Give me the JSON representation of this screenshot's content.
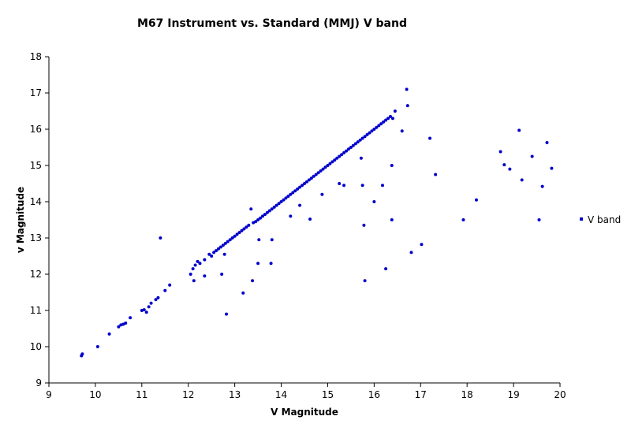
{
  "chart_data": {
    "type": "scatter",
    "title": "M67 Instrument vs. Standard (MMJ)  V band",
    "xlabel": "V Magnitude",
    "ylabel": "v Magnitude",
    "xlim": [
      9,
      20
    ],
    "ylim": [
      9,
      18
    ],
    "xticks": [
      "9",
      "10",
      "11",
      "12",
      "13",
      "14",
      "15",
      "16",
      "17",
      "18",
      "19",
      "20"
    ],
    "yticks": [
      "9",
      "10",
      "11",
      "12",
      "13",
      "14",
      "15",
      "16",
      "17",
      "18"
    ],
    "grid": false,
    "legend": "right",
    "marker_color": "#0000cc",
    "series": [
      {
        "name": "V band",
        "points": [
          [
            9.7,
            9.75
          ],
          [
            9.72,
            9.8
          ],
          [
            10.05,
            10.0
          ],
          [
            10.3,
            10.35
          ],
          [
            10.5,
            10.55
          ],
          [
            10.55,
            10.6
          ],
          [
            10.6,
            10.62
          ],
          [
            10.65,
            10.65
          ],
          [
            10.75,
            10.8
          ],
          [
            11.0,
            11.0
          ],
          [
            11.05,
            11.02
          ],
          [
            11.1,
            10.95
          ],
          [
            11.15,
            11.1
          ],
          [
            11.2,
            11.2
          ],
          [
            11.3,
            11.3
          ],
          [
            11.35,
            11.35
          ],
          [
            11.4,
            13.0
          ],
          [
            11.5,
            11.55
          ],
          [
            11.6,
            11.7
          ],
          [
            12.05,
            12.0
          ],
          [
            12.1,
            12.15
          ],
          [
            12.12,
            11.82
          ],
          [
            12.15,
            12.25
          ],
          [
            12.2,
            12.35
          ],
          [
            12.25,
            12.3
          ],
          [
            12.35,
            11.95
          ],
          [
            12.35,
            12.4
          ],
          [
            12.45,
            12.55
          ],
          [
            12.5,
            12.5
          ],
          [
            12.55,
            12.6
          ],
          [
            12.6,
            12.65
          ],
          [
            12.65,
            12.7
          ],
          [
            12.7,
            12.75
          ],
          [
            12.72,
            12.0
          ],
          [
            12.75,
            12.8
          ],
          [
            12.78,
            12.55
          ],
          [
            12.8,
            12.85
          ],
          [
            12.82,
            10.9
          ],
          [
            12.85,
            12.9
          ],
          [
            12.9,
            12.95
          ],
          [
            12.95,
            13.0
          ],
          [
            13.0,
            13.05
          ],
          [
            13.05,
            13.1
          ],
          [
            13.1,
            13.15
          ],
          [
            13.15,
            13.2
          ],
          [
            13.18,
            11.48
          ],
          [
            13.2,
            13.25
          ],
          [
            13.25,
            13.3
          ],
          [
            13.3,
            13.35
          ],
          [
            13.35,
            13.8
          ],
          [
            13.38,
            11.82
          ],
          [
            13.4,
            13.42
          ],
          [
            13.45,
            13.45
          ],
          [
            13.5,
            13.5
          ],
          [
            13.5,
            12.3
          ],
          [
            13.52,
            12.95
          ],
          [
            13.55,
            13.55
          ],
          [
            13.6,
            13.6
          ],
          [
            13.65,
            13.65
          ],
          [
            13.7,
            13.7
          ],
          [
            13.75,
            13.75
          ],
          [
            13.78,
            12.3
          ],
          [
            13.8,
            13.8
          ],
          [
            13.8,
            12.95
          ],
          [
            13.85,
            13.85
          ],
          [
            13.9,
            13.9
          ],
          [
            13.95,
            13.95
          ],
          [
            14.0,
            14.0
          ],
          [
            14.05,
            14.05
          ],
          [
            14.1,
            14.1
          ],
          [
            14.15,
            14.15
          ],
          [
            14.2,
            13.6
          ],
          [
            14.2,
            14.2
          ],
          [
            14.25,
            14.25
          ],
          [
            14.3,
            14.3
          ],
          [
            14.35,
            14.35
          ],
          [
            14.4,
            13.9
          ],
          [
            14.4,
            14.4
          ],
          [
            14.45,
            14.45
          ],
          [
            14.5,
            14.5
          ],
          [
            14.55,
            14.55
          ],
          [
            14.6,
            14.6
          ],
          [
            14.62,
            13.52
          ],
          [
            14.65,
            14.65
          ],
          [
            14.7,
            14.7
          ],
          [
            14.75,
            14.75
          ],
          [
            14.8,
            14.8
          ],
          [
            14.85,
            14.85
          ],
          [
            14.88,
            14.2
          ],
          [
            14.9,
            14.9
          ],
          [
            14.95,
            14.95
          ],
          [
            15.0,
            15.0
          ],
          [
            15.05,
            15.05
          ],
          [
            15.1,
            15.1
          ],
          [
            15.15,
            15.15
          ],
          [
            15.2,
            15.2
          ],
          [
            15.25,
            15.25
          ],
          [
            15.25,
            14.5
          ],
          [
            15.3,
            15.3
          ],
          [
            15.35,
            15.35
          ],
          [
            15.35,
            14.45
          ],
          [
            15.4,
            15.4
          ],
          [
            15.45,
            15.45
          ],
          [
            15.5,
            15.5
          ],
          [
            15.55,
            15.55
          ],
          [
            15.6,
            15.6
          ],
          [
            15.65,
            15.65
          ],
          [
            15.7,
            15.7
          ],
          [
            15.72,
            15.2
          ],
          [
            15.75,
            15.75
          ],
          [
            15.75,
            14.45
          ],
          [
            15.78,
            13.35
          ],
          [
            15.8,
            11.82
          ],
          [
            15.8,
            15.8
          ],
          [
            15.85,
            15.85
          ],
          [
            15.9,
            15.9
          ],
          [
            15.95,
            15.95
          ],
          [
            16.0,
            16.0
          ],
          [
            16.0,
            14.0
          ],
          [
            16.05,
            16.05
          ],
          [
            16.1,
            16.1
          ],
          [
            16.15,
            16.15
          ],
          [
            16.18,
            14.45
          ],
          [
            16.2,
            16.2
          ],
          [
            16.25,
            16.25
          ],
          [
            16.25,
            12.15
          ],
          [
            16.3,
            16.3
          ],
          [
            16.35,
            16.35
          ],
          [
            16.38,
            15.0
          ],
          [
            16.38,
            13.5
          ],
          [
            16.4,
            16.3
          ],
          [
            16.45,
            16.5
          ],
          [
            16.6,
            15.95
          ],
          [
            16.7,
            17.1
          ],
          [
            16.72,
            16.65
          ],
          [
            16.8,
            12.6
          ],
          [
            17.02,
            12.82
          ],
          [
            17.2,
            15.75
          ],
          [
            17.32,
            14.75
          ],
          [
            17.92,
            13.5
          ],
          [
            18.2,
            14.05
          ],
          [
            18.72,
            15.38
          ],
          [
            18.8,
            15.02
          ],
          [
            18.92,
            14.9
          ],
          [
            19.12,
            15.97
          ],
          [
            19.18,
            14.6
          ],
          [
            19.4,
            15.25
          ],
          [
            19.55,
            13.5
          ],
          [
            19.62,
            14.42
          ],
          [
            19.72,
            15.63
          ],
          [
            19.82,
            14.92
          ]
        ]
      }
    ]
  }
}
